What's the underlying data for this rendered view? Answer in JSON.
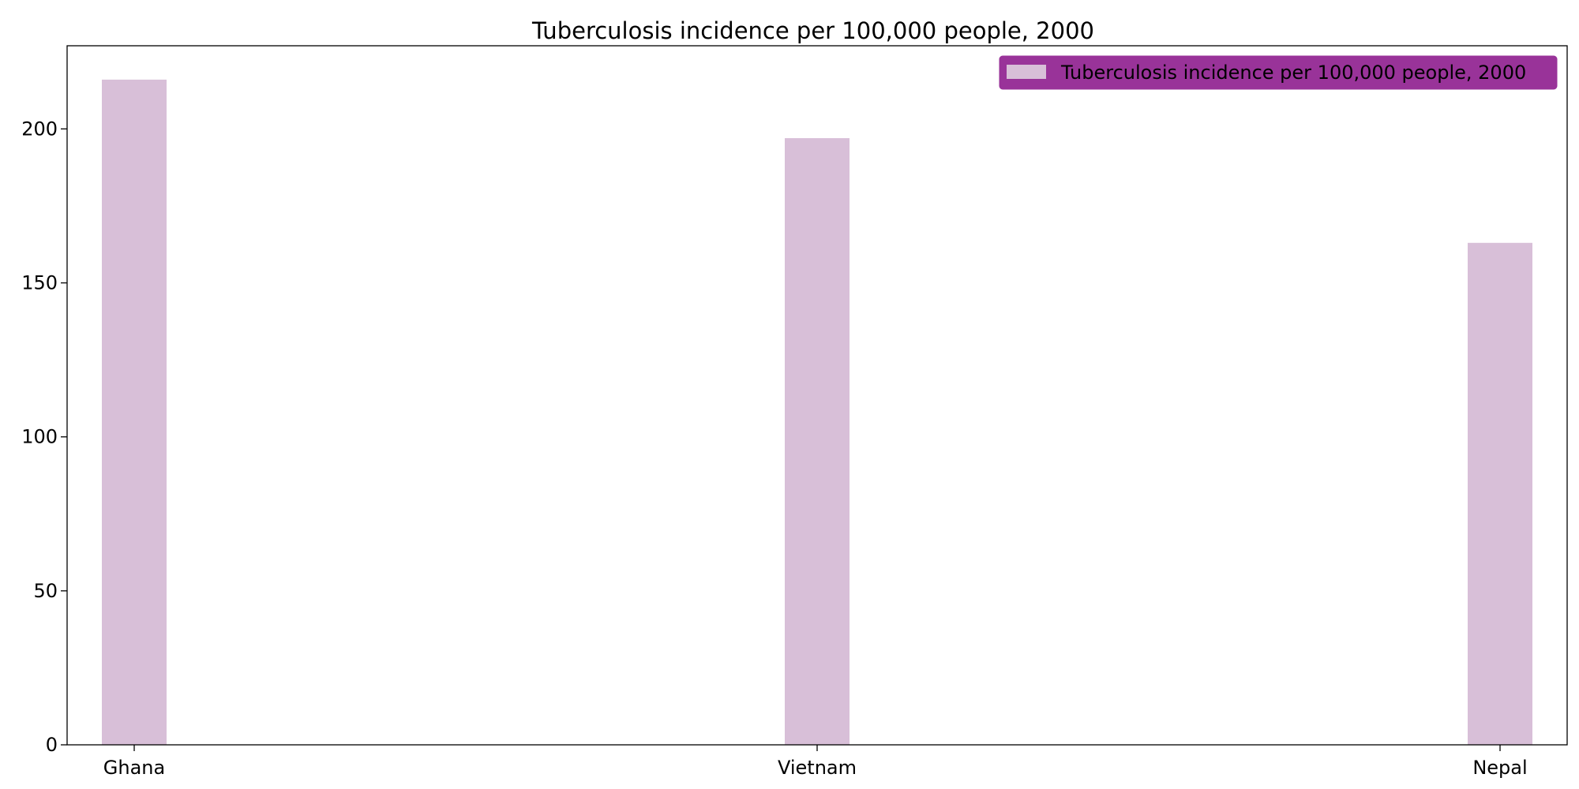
{
  "chart_data": {
    "type": "bar",
    "title": "Tuberculosis incidence per 100,000 people, 2000",
    "categories": [
      "Ghana",
      "Vietnam",
      "Nepal"
    ],
    "series": [
      {
        "name": "Tuberculosis incidence per 100,000 people, 2000",
        "values": [
          216,
          197,
          163
        ],
        "color": "#d8bfd8"
      }
    ],
    "ylim": [
      0,
      227
    ],
    "yticks": [
      0,
      50,
      100,
      150,
      200
    ],
    "xlabel": "",
    "ylabel": "",
    "grid": false,
    "legend": {
      "placement": "top-right",
      "background": "#993399",
      "edge": "#993399"
    }
  }
}
